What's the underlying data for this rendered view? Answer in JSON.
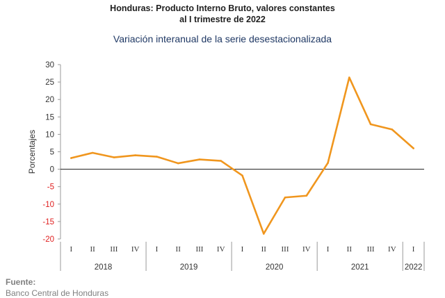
{
  "title_line1": "Honduras: Producto Interno Bruto, valores constantes",
  "title_line2": "al I trimestre de 2022",
  "subtitle": "Variación interanual de la serie desestacionalizada",
  "source_label": "Fuente:",
  "source_text": "Banco Central de Honduras",
  "colors": {
    "line": "#F0961E",
    "negative_tick": "#E02020",
    "axis": "#999999",
    "text": "#333333"
  },
  "chart_data": {
    "type": "line",
    "title": "Honduras: Producto Interno Bruto, valores constantes al I trimestre de 2022",
    "subtitle": "Variación interanual de la serie desestacionalizada",
    "xlabel": "",
    "ylabel": "Porcentajes",
    "ylim": [
      -20,
      30
    ],
    "yticks": [
      30,
      25,
      20,
      15,
      10,
      5,
      0,
      -5,
      -10,
      -15,
      -20
    ],
    "grid": false,
    "categories": [
      "I",
      "II",
      "III",
      "IV",
      "I",
      "II",
      "III",
      "IV",
      "I",
      "II",
      "III",
      "IV",
      "I",
      "II",
      "III",
      "IV",
      "I"
    ],
    "years": [
      {
        "label": "2018",
        "quarters": 4
      },
      {
        "label": "2019",
        "quarters": 4
      },
      {
        "label": "2020",
        "quarters": 4
      },
      {
        "label": "2021",
        "quarters": 4
      },
      {
        "label": "2022",
        "quarters": 1
      }
    ],
    "series": [
      {
        "values": [
          3.2,
          4.7,
          3.4,
          4.0,
          3.6,
          1.7,
          2.8,
          2.4,
          -1.8,
          -18.5,
          -8.1,
          -7.6,
          1.8,
          26.3,
          12.9,
          11.4,
          6.0
        ]
      }
    ]
  }
}
